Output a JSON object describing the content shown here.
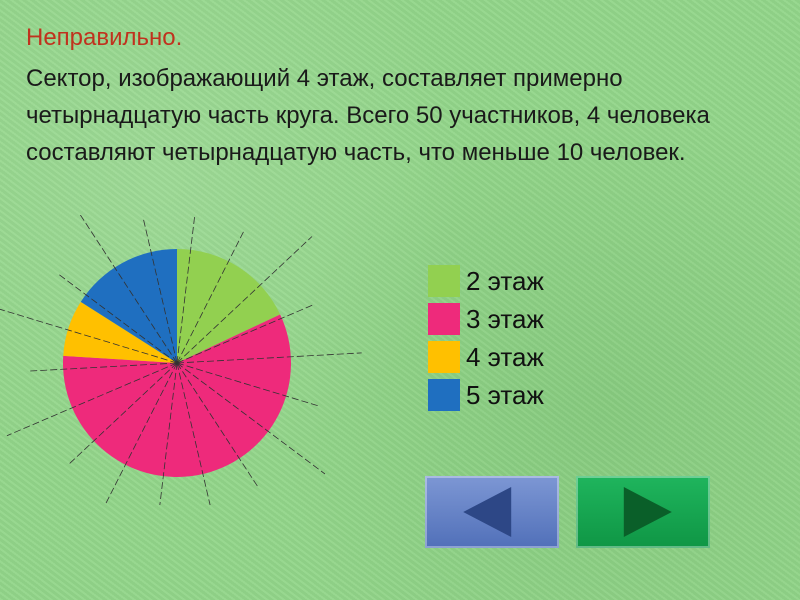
{
  "heading": "Неправильно.",
  "explanation": "Сектор,  изображающий 4 этаж, составляет примерно четырнадцатую часть круга. Всего 50 участников, 4 человека составляют четырнадцатую часть, что меньше 10 человек.",
  "chart_data": {
    "type": "pie",
    "title": "",
    "legend_position": "right",
    "slices": [
      {
        "label": "2 этаж",
        "value": 9,
        "color": "#92d050"
      },
      {
        "label": "3 этаж",
        "value": 29,
        "color": "#ee2a7b"
      },
      {
        "label": "4 этаж",
        "value": 4,
        "color": "#ffc000"
      },
      {
        "label": "5 этаж",
        "value": 8,
        "color": "#1f6fc0"
      }
    ],
    "total": 50
  },
  "nav": {
    "back": {
      "icon": "triangle-left-icon",
      "color": "#5170b9"
    },
    "forward": {
      "icon": "triangle-right-icon",
      "color": "#0f9645"
    }
  }
}
